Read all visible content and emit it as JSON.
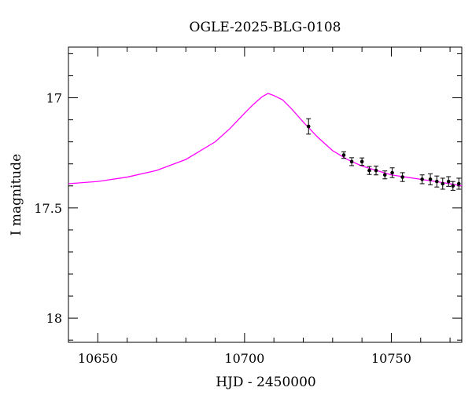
{
  "chart_data": {
    "type": "scatter",
    "title": "OGLE-2025-BLG-0108",
    "xlabel": "HJD - 2450000",
    "ylabel": "I magnitude",
    "xlim": [
      10640,
      10774
    ],
    "ylim": [
      18.11,
      16.77
    ],
    "y_inverted": true,
    "x_ticks": [
      10650,
      10700,
      10750
    ],
    "x_tick_labels": [
      "10650",
      "10700",
      "10750"
    ],
    "y_ticks": [
      17,
      17.5,
      18
    ],
    "y_tick_labels": [
      "17",
      "17.5",
      "18"
    ],
    "grid": false,
    "legend": "none",
    "colors": {
      "model": "#ff00ff",
      "points": "#000000",
      "axes": "#000000"
    },
    "series": [
      {
        "type": "scatter-errorbar",
        "points": [
          {
            "x": 10721.8,
            "y": 17.13,
            "err": 0.035
          },
          {
            "x": 10733.8,
            "y": 17.26,
            "err": 0.015
          },
          {
            "x": 10736.5,
            "y": 17.29,
            "err": 0.018
          },
          {
            "x": 10740.0,
            "y": 17.29,
            "err": 0.017
          },
          {
            "x": 10742.5,
            "y": 17.33,
            "err": 0.018
          },
          {
            "x": 10744.8,
            "y": 17.33,
            "err": 0.02
          },
          {
            "x": 10747.8,
            "y": 17.35,
            "err": 0.018
          },
          {
            "x": 10750.3,
            "y": 17.34,
            "err": 0.022
          },
          {
            "x": 10753.8,
            "y": 17.36,
            "err": 0.02
          },
          {
            "x": 10760.5,
            "y": 17.37,
            "err": 0.02
          },
          {
            "x": 10763.3,
            "y": 17.37,
            "err": 0.025
          },
          {
            "x": 10765.5,
            "y": 17.38,
            "err": 0.025
          },
          {
            "x": 10767.5,
            "y": 17.39,
            "err": 0.025
          },
          {
            "x": 10769.5,
            "y": 17.38,
            "err": 0.022
          },
          {
            "x": 10771.0,
            "y": 17.4,
            "err": 0.02
          },
          {
            "x": 10773.0,
            "y": 17.39,
            "err": 0.025
          }
        ]
      },
      {
        "type": "line",
        "x": [
          10640,
          10650,
          10660,
          10670,
          10680,
          10690,
          10695,
          10700,
          10703,
          10706,
          10708,
          10710,
          10713,
          10716,
          10720,
          10725,
          10730,
          10735,
          10740,
          10745,
          10750,
          10755,
          10760,
          10765,
          10770,
          10774
        ],
        "y": [
          17.39,
          17.38,
          17.36,
          17.33,
          17.28,
          17.2,
          17.14,
          17.07,
          17.03,
          16.995,
          16.98,
          16.99,
          17.01,
          17.05,
          17.11,
          17.18,
          17.24,
          17.28,
          17.31,
          17.33,
          17.35,
          17.36,
          17.37,
          17.38,
          17.39,
          17.4
        ]
      }
    ]
  }
}
